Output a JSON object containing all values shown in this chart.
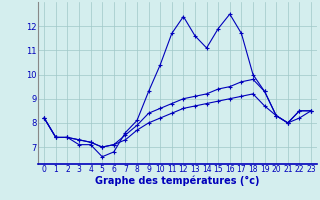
{
  "xlabel": "Graphe des températures (°c)",
  "background_color": "#d4eeee",
  "line_color": "#0000bb",
  "grid_color": "#a0c8c8",
  "x_ticks": [
    0,
    1,
    2,
    3,
    4,
    5,
    6,
    7,
    8,
    9,
    10,
    11,
    12,
    13,
    14,
    15,
    16,
    17,
    18,
    19,
    20,
    21,
    22,
    23
  ],
  "y_ticks": [
    7,
    8,
    9,
    10,
    11,
    12
  ],
  "xlim": [
    -0.5,
    23.5
  ],
  "ylim": [
    6.3,
    13.0
  ],
  "series": [
    [
      8.2,
      7.4,
      7.4,
      7.1,
      7.1,
      6.6,
      6.8,
      7.6,
      8.1,
      9.3,
      10.4,
      11.7,
      12.4,
      11.6,
      11.1,
      11.9,
      12.5,
      11.7,
      10.0,
      9.3,
      8.3,
      8.0,
      8.5,
      8.5
    ],
    [
      8.2,
      7.4,
      7.4,
      7.3,
      7.2,
      7.0,
      7.1,
      7.5,
      7.9,
      8.4,
      8.6,
      8.8,
      9.0,
      9.1,
      9.2,
      9.4,
      9.5,
      9.7,
      9.8,
      9.3,
      8.3,
      8.0,
      8.5,
      8.5
    ],
    [
      8.2,
      7.4,
      7.4,
      7.3,
      7.2,
      7.0,
      7.1,
      7.3,
      7.7,
      8.0,
      8.2,
      8.4,
      8.6,
      8.7,
      8.8,
      8.9,
      9.0,
      9.1,
      9.2,
      8.7,
      8.3,
      8.0,
      8.2,
      8.5
    ]
  ],
  "tick_fontsize": 5.5,
  "xlabel_fontsize": 7.0
}
